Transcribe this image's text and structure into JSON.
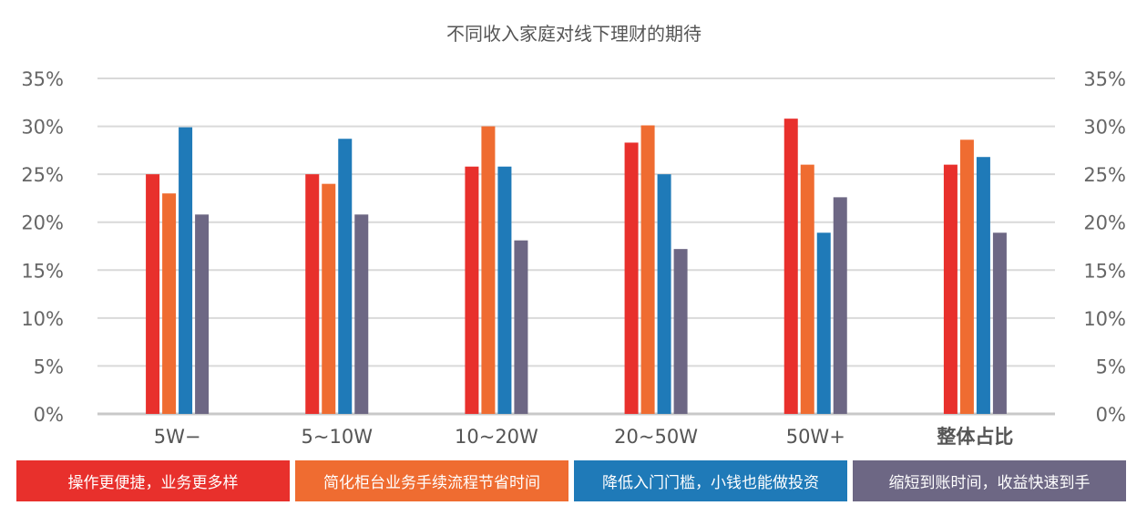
{
  "chart_data": {
    "type": "bar",
    "title": "不同收入家庭对线下理财的期待",
    "categories": [
      "5W−",
      "5~10W",
      "10~20W",
      "20~50W",
      "50W+",
      "整体占比"
    ],
    "series": [
      {
        "name": "操作更便捷，业务更多样",
        "color": "#e8302c",
        "values": [
          25,
          25,
          25.8,
          28.3,
          30.8,
          26
        ]
      },
      {
        "name": "简化柜台业务手续流程节省时间",
        "color": "#ef6c31",
        "values": [
          23,
          24,
          30,
          30.1,
          26,
          28.6
        ]
      },
      {
        "name": "降低入门门槛，小钱也能做投资",
        "color": "#1f7ab8",
        "values": [
          29.9,
          28.7,
          25.8,
          25,
          18.9,
          26.8
        ]
      },
      {
        "name": "缩短到账时间，收益快速到手",
        "color": "#6d6784",
        "values": [
          20.8,
          20.8,
          18.1,
          17.2,
          22.6,
          18.9
        ]
      }
    ],
    "ylim": [
      0,
      35
    ],
    "yticks": [
      "0%",
      "5%",
      "10%",
      "15%",
      "20%",
      "25%",
      "30%",
      "35%"
    ],
    "ytick_values": [
      0,
      5,
      10,
      15,
      20,
      25,
      30,
      35
    ],
    "legend_position": "bottom",
    "grid": true
  }
}
